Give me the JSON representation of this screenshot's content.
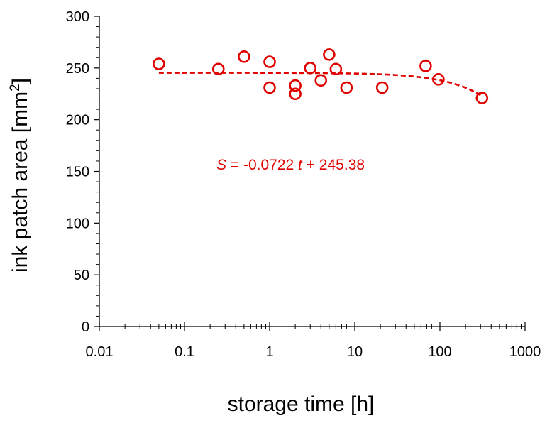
{
  "chart_data": {
    "type": "scatter",
    "xlabel": "storage time [h]",
    "ylabel": {
      "main": "ink patch area [mm",
      "sup": "2",
      "close": "]"
    },
    "x_scale": "log",
    "xlim": [
      0.01,
      1000
    ],
    "ylim": [
      0,
      300
    ],
    "x_ticks": [
      {
        "value": 0.01,
        "label": "0.01"
      },
      {
        "value": 0.1,
        "label": "0.1"
      },
      {
        "value": 1,
        "label": "1"
      },
      {
        "value": 10,
        "label": "10"
      },
      {
        "value": 100,
        "label": "100"
      },
      {
        "value": 1000,
        "label": "1000"
      }
    ],
    "y_ticks": [
      {
        "value": 0,
        "label": "0"
      },
      {
        "value": 50,
        "label": "50"
      },
      {
        "value": 100,
        "label": "100"
      },
      {
        "value": 150,
        "label": "150"
      },
      {
        "value": 200,
        "label": "200"
      },
      {
        "value": 250,
        "label": "250"
      },
      {
        "value": 300,
        "label": "300"
      }
    ],
    "grid": false,
    "marker_color": "#e00000",
    "points": [
      {
        "x": 0.05,
        "y": 254
      },
      {
        "x": 0.25,
        "y": 249
      },
      {
        "x": 0.5,
        "y": 261
      },
      {
        "x": 1,
        "y": 256
      },
      {
        "x": 1,
        "y": 231
      },
      {
        "x": 2,
        "y": 233
      },
      {
        "x": 2,
        "y": 225
      },
      {
        "x": 3,
        "y": 250
      },
      {
        "x": 4,
        "y": 238
      },
      {
        "x": 5,
        "y": 263
      },
      {
        "x": 6,
        "y": 249
      },
      {
        "x": 8,
        "y": 231
      },
      {
        "x": 21,
        "y": 231
      },
      {
        "x": 68,
        "y": 252
      },
      {
        "x": 96,
        "y": 239
      },
      {
        "x": 312,
        "y": 221
      }
    ],
    "fit": {
      "slope": -0.0722,
      "intercept": 245.38,
      "x_range": [
        0.05,
        312
      ],
      "style": "dashed",
      "color": "#e00000"
    },
    "annotation": {
      "s": "S",
      "mid": " = -0.0722 ",
      "t": "t",
      "tail": " + 245.38"
    }
  }
}
